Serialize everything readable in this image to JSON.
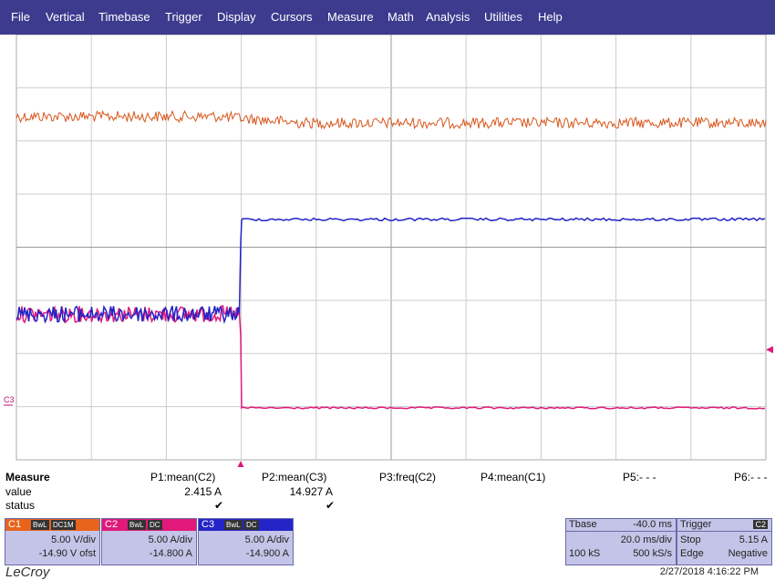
{
  "menu": [
    "File",
    "Vertical",
    "Timebase",
    "Trigger",
    "Display",
    "Cursors",
    "Measure",
    "Math",
    "Analysis",
    "Utilities",
    "Help"
  ],
  "trace_marker": "C3",
  "measure": {
    "title": "Measure",
    "row_labels": [
      "value",
      "status"
    ],
    "params": [
      {
        "name": "P1:mean(C2)",
        "value": "2.415 A",
        "status": "✔"
      },
      {
        "name": "P2:mean(C3)",
        "value": "14.927 A",
        "status": "✔"
      },
      {
        "name": "P3:freq(C2)"
      },
      {
        "name": "P4:mean(C1)"
      },
      {
        "name": "P5:- - -"
      },
      {
        "name": "P6:- - -"
      }
    ]
  },
  "channels": [
    {
      "name": "C1",
      "badges": [
        "BwL",
        "DC1M"
      ],
      "scale": "5.00 V/div",
      "offset": "-14.90 V ofst"
    },
    {
      "name": "C2",
      "badges": [
        "BwL",
        "DC"
      ],
      "scale": "5.00 A/div",
      "offset": "-14.800 A"
    },
    {
      "name": "C3",
      "badges": [
        "BwL",
        "DC"
      ],
      "scale": "5.00 A/div",
      "offset": "-14.900 A"
    }
  ],
  "timebase": {
    "title": "Tbase",
    "delay": "-40.0 ms",
    "scale": "20.0 ms/div",
    "samples": "100 kS",
    "rate": "500 kS/s"
  },
  "trigger": {
    "title": "Trigger",
    "source": "C2",
    "mode": "Stop",
    "level": "5.15 A",
    "type": "Edge",
    "slope": "Negative"
  },
  "brand": "LeCroy",
  "timestamp": "2/27/2018 4:16:22 PM"
}
